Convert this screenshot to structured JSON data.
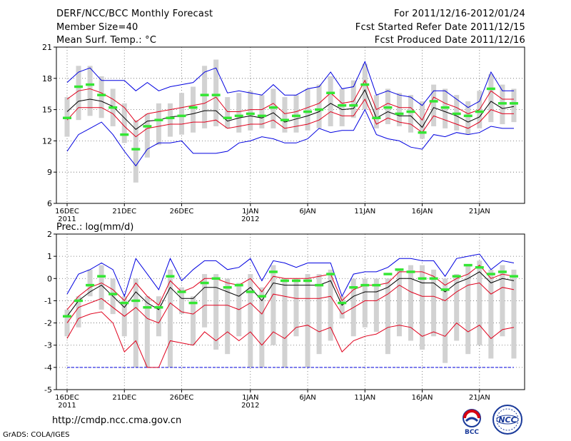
{
  "header": {
    "title": "DERF/NCC/BCC Monthly Forecast",
    "member": "Member Size=40",
    "variable": "Mean Surf. Temp.: °C",
    "period": "For 2011/12/16-2012/01/24",
    "started": "Fcst Started Refer Date 2011/12/15",
    "produced": "Fcst Produced Date 2011/12/16"
  },
  "footer": {
    "url": "http://cmdp.ncc.cma.gov.cn",
    "credit": "GrADS: COLA/IGES"
  },
  "logos": {
    "bcc_label": "BCC",
    "ncc_label": "NCC"
  },
  "colors": {
    "box": "#d2d2d2",
    "median": "#33e633",
    "mean": "#000000",
    "spread": "#e0001c",
    "envelope": "#0000e0",
    "grid": "#666666"
  },
  "chart_data": [
    {
      "type": "line",
      "title": "Mean Surf. Temp.: °C",
      "ylim": [
        6,
        21
      ],
      "yticks": [
        6,
        9,
        12,
        15,
        18,
        21
      ],
      "x": [
        "12/16",
        "12/17",
        "12/18",
        "12/19",
        "12/20",
        "12/21",
        "12/22",
        "12/23",
        "12/24",
        "12/25",
        "12/26",
        "12/27",
        "12/28",
        "12/29",
        "12/30",
        "12/31",
        "01/01",
        "01/02",
        "01/03",
        "01/04",
        "01/05",
        "01/06",
        "01/07",
        "01/08",
        "01/09",
        "01/10",
        "01/11",
        "01/12",
        "01/13",
        "01/14",
        "01/15",
        "01/16",
        "01/17",
        "01/18",
        "01/19",
        "01/20",
        "01/21",
        "01/22",
        "01/23",
        "01/24"
      ],
      "xticks": [
        {
          "label": "16DEC",
          "sub": "2011",
          "index": 0
        },
        {
          "label": "21DEC",
          "sub": "",
          "index": 5
        },
        {
          "label": "26DEC",
          "sub": "",
          "index": 10
        },
        {
          "label": "1JAN",
          "sub": "2012",
          "index": 16
        },
        {
          "label": "6JAN",
          "sub": "",
          "index": 21
        },
        {
          "label": "11JAN",
          "sub": "",
          "index": 26
        },
        {
          "label": "16JAN",
          "sub": "",
          "index": 31
        },
        {
          "label": "21JAN",
          "sub": "",
          "index": 36
        }
      ],
      "box_low": [
        12.4,
        14.0,
        14.4,
        14.2,
        13.4,
        11.8,
        8.0,
        10.4,
        11.6,
        12.4,
        12.6,
        12.8,
        13.2,
        13.4,
        13.2,
        12.8,
        13.0,
        13.2,
        13.2,
        12.8,
        12.8,
        13.0,
        13.2,
        13.4,
        13.4,
        14.2,
        15.0,
        13.2,
        13.6,
        13.4,
        12.8,
        12.2,
        13.4,
        13.2,
        13.0,
        12.6,
        13.2,
        13.8,
        13.6,
        13.8
      ],
      "box_high": [
        16.2,
        19.2,
        19.2,
        18.2,
        17.0,
        15.6,
        14.0,
        14.6,
        15.6,
        15.6,
        16.6,
        17.2,
        19.2,
        19.8,
        16.2,
        16.6,
        16.8,
        16.4,
        17.0,
        16.2,
        16.4,
        17.0,
        17.4,
        18.2,
        17.0,
        17.8,
        19.4,
        16.4,
        17.0,
        16.6,
        16.4,
        15.8,
        17.4,
        17.0,
        16.4,
        15.8,
        16.8,
        18.4,
        17.4,
        17.0
      ],
      "series": [
        {
          "name": "ensemble max",
          "role": "envelope",
          "values": [
            17.6,
            18.6,
            19.0,
            17.8,
            17.8,
            17.8,
            16.8,
            17.6,
            16.8,
            17.2,
            17.4,
            17.6,
            18.6,
            19.0,
            16.6,
            16.8,
            16.6,
            16.4,
            17.4,
            16.4,
            16.4,
            17.0,
            17.2,
            18.6,
            17.0,
            17.2,
            19.6,
            16.4,
            16.8,
            16.4,
            16.2,
            15.4,
            16.8,
            16.8,
            16.0,
            15.2,
            15.8,
            18.6,
            16.8,
            16.8
          ]
        },
        {
          "name": "ensemble min",
          "role": "envelope",
          "values": [
            11.0,
            12.6,
            13.2,
            13.8,
            12.6,
            11.0,
            9.6,
            11.2,
            11.8,
            11.8,
            12.0,
            10.8,
            10.8,
            10.8,
            11.0,
            11.8,
            12.0,
            12.4,
            12.2,
            11.8,
            11.8,
            12.2,
            13.2,
            12.8,
            13.0,
            13.0,
            15.0,
            12.6,
            12.2,
            12.0,
            11.4,
            11.2,
            12.6,
            12.4,
            12.8,
            12.6,
            12.8,
            13.4,
            13.2,
            13.2
          ]
        },
        {
          "name": "mean + std",
          "role": "spread",
          "values": [
            16.0,
            16.8,
            17.0,
            16.6,
            16.0,
            15.2,
            13.8,
            14.6,
            14.8,
            15.0,
            15.2,
            15.4,
            15.6,
            16.2,
            14.8,
            14.8,
            15.0,
            15.0,
            15.6,
            14.6,
            14.8,
            15.2,
            15.6,
            16.6,
            15.6,
            15.8,
            17.8,
            15.0,
            15.6,
            15.2,
            15.2,
            14.0,
            16.2,
            15.6,
            15.2,
            14.6,
            15.0,
            16.8,
            16.0,
            16.0
          ]
        },
        {
          "name": "mean - std",
          "role": "spread",
          "values": [
            14.0,
            15.2,
            15.2,
            15.2,
            14.6,
            13.4,
            12.4,
            13.2,
            13.4,
            13.6,
            13.6,
            13.8,
            13.8,
            14.0,
            13.2,
            13.4,
            13.6,
            13.6,
            14.0,
            13.2,
            13.4,
            13.6,
            14.0,
            14.8,
            14.4,
            14.4,
            16.0,
            13.6,
            14.2,
            13.8,
            13.6,
            12.8,
            14.4,
            14.0,
            13.6,
            13.2,
            13.8,
            15.0,
            14.6,
            14.6
          ]
        },
        {
          "name": "ensemble mean",
          "role": "mean",
          "values": [
            14.8,
            15.8,
            16.0,
            15.8,
            15.3,
            14.2,
            13.1,
            13.9,
            14.0,
            14.3,
            14.4,
            14.6,
            14.9,
            14.9,
            13.9,
            14.2,
            14.4,
            14.2,
            14.7,
            13.8,
            14.1,
            14.4,
            14.8,
            15.6,
            15.0,
            15.1,
            16.9,
            14.2,
            14.8,
            14.4,
            14.4,
            13.3,
            15.2,
            14.8,
            14.4,
            13.8,
            14.3,
            15.8,
            15.1,
            15.3
          ]
        }
      ],
      "median": [
        14.2,
        17.2,
        17.4,
        16.4,
        15.2,
        12.6,
        11.2,
        13.4,
        14.0,
        14.2,
        14.4,
        15.2,
        16.4,
        16.4,
        14.2,
        14.4,
        14.6,
        14.4,
        15.2,
        14.0,
        14.4,
        14.8,
        15.0,
        16.6,
        15.4,
        15.4,
        17.4,
        14.2,
        15.2,
        14.6,
        14.8,
        12.8,
        15.8,
        15.2,
        14.6,
        14.4,
        14.8,
        17.0,
        15.6,
        15.6
      ]
    },
    {
      "type": "line",
      "title": "Prec.: log(mm/d)",
      "ylim": [
        -5,
        2
      ],
      "yticks": [
        -5,
        -4,
        -3,
        -2,
        -1,
        0,
        1,
        2
      ],
      "x": [
        "12/16",
        "12/17",
        "12/18",
        "12/19",
        "12/20",
        "12/21",
        "12/22",
        "12/23",
        "12/24",
        "12/25",
        "12/26",
        "12/27",
        "12/28",
        "12/29",
        "12/30",
        "12/31",
        "01/01",
        "01/02",
        "01/03",
        "01/04",
        "01/05",
        "01/06",
        "01/07",
        "01/08",
        "01/09",
        "01/10",
        "01/11",
        "01/12",
        "01/13",
        "01/14",
        "01/15",
        "01/16",
        "01/17",
        "01/18",
        "01/19",
        "01/20",
        "01/21",
        "01/22",
        "01/23",
        "01/24"
      ],
      "xticks": [
        {
          "label": "16DEC",
          "sub": "2011",
          "index": 0
        },
        {
          "label": "21DEC",
          "sub": "",
          "index": 5
        },
        {
          "label": "26DEC",
          "sub": "",
          "index": 10
        },
        {
          "label": "1JAN",
          "sub": "2012",
          "index": 16
        },
        {
          "label": "6JAN",
          "sub": "",
          "index": 21
        },
        {
          "label": "11JAN",
          "sub": "",
          "index": 26
        },
        {
          "label": "16JAN",
          "sub": "",
          "index": 31
        },
        {
          "label": "21JAN",
          "sub": "",
          "index": 36
        }
      ],
      "box_low": [
        -2.6,
        -2.2,
        -0.8,
        -1.4,
        -1.6,
        -2.6,
        -4.0,
        -4.0,
        -2.6,
        -4.0,
        -1.6,
        -3.0,
        -2.2,
        -3.2,
        -3.4,
        -2.6,
        -4.0,
        -4.0,
        -3.0,
        -4.0,
        -2.6,
        -4.0,
        -3.4,
        -2.8,
        -1.8,
        -2.6,
        -2.2,
        -2.4,
        -3.4,
        -2.6,
        -2.8,
        -3.2,
        -2.6,
        -3.8,
        -2.8,
        -3.4,
        -3.0,
        -3.6,
        -2.6,
        -3.6
      ],
      "box_high": [
        -1.4,
        -0.8,
        0.4,
        0.6,
        0.0,
        -0.8,
        0.0,
        -0.8,
        -0.8,
        0.4,
        -0.4,
        -0.8,
        0.2,
        0.2,
        0.0,
        -0.2,
        0.2,
        -0.4,
        0.6,
        0.0,
        0.0,
        0.2,
        0.2,
        0.4,
        -0.8,
        0.0,
        0.0,
        0.0,
        0.0,
        0.4,
        0.6,
        0.6,
        0.4,
        0.0,
        0.2,
        0.6,
        0.8,
        0.4,
        0.6,
        0.4
      ],
      "series": [
        {
          "name": "ensemble max",
          "role": "envelope",
          "values": [
            -0.7,
            0.2,
            0.4,
            0.7,
            0.4,
            -0.8,
            0.9,
            0.2,
            -0.5,
            0.9,
            -0.1,
            0.4,
            0.8,
            0.8,
            0.4,
            0.5,
            0.9,
            -0.1,
            0.8,
            0.7,
            0.5,
            0.7,
            0.7,
            0.7,
            -0.8,
            0.2,
            0.3,
            0.3,
            0.5,
            0.9,
            0.9,
            0.8,
            0.8,
            0.1,
            0.9,
            1.0,
            1.1,
            0.4,
            0.8,
            0.7
          ]
        },
        {
          "name": "ensemble min / floor",
          "role": "envelope",
          "values": [
            -4.0,
            -4.0,
            -4.0,
            -4.0,
            -4.0,
            -4.0,
            -4.0,
            -4.0,
            -4.0,
            -4.0,
            -4.0,
            -4.0,
            -4.0,
            -4.0,
            -4.0,
            -4.0,
            -4.0,
            -4.0,
            -4.0,
            -4.0,
            -4.0,
            -4.0,
            -4.0,
            -4.0,
            -4.0,
            -4.0,
            -4.0,
            -4.0,
            -4.0,
            -4.0,
            -4.0,
            -4.0,
            -4.0,
            -4.0,
            -4.0,
            -4.0,
            -4.0,
            -4.0,
            -4.0,
            -4.0
          ]
        },
        {
          "name": "mean + std",
          "role": "spread",
          "values": [
            -1.4,
            -0.8,
            -0.4,
            -0.2,
            -0.5,
            -1.0,
            -0.2,
            -0.8,
            -1.2,
            -0.1,
            -0.6,
            -0.4,
            0.0,
            0.0,
            -0.2,
            -0.3,
            0.0,
            -0.6,
            0.1,
            0.0,
            0.0,
            0.0,
            0.1,
            0.2,
            -1.0,
            -0.5,
            -0.3,
            -0.3,
            -0.2,
            0.3,
            0.3,
            0.3,
            0.1,
            -0.3,
            0.0,
            0.2,
            0.6,
            0.0,
            0.2,
            0.1
          ]
        },
        {
          "name": "mean - std",
          "role": "spread",
          "values": [
            -2.7,
            -1.8,
            -1.6,
            -1.5,
            -2.0,
            -3.3,
            -2.8,
            -4.0,
            -4.0,
            -2.8,
            -2.9,
            -3.0,
            -2.4,
            -2.8,
            -2.4,
            -2.8,
            -2.4,
            -3.0,
            -2.4,
            -2.7,
            -2.2,
            -2.1,
            -2.4,
            -2.2,
            -3.3,
            -2.8,
            -2.6,
            -2.5,
            -2.2,
            -2.1,
            -2.2,
            -2.6,
            -2.4,
            -2.6,
            -2.0,
            -2.4,
            -2.1,
            -2.7,
            -2.3,
            -2.2
          ]
        },
        {
          "name": "mean - std (inner)",
          "role": "spread",
          "values": [
            -2.0,
            -1.3,
            -1.1,
            -0.9,
            -1.3,
            -1.7,
            -1.3,
            -1.8,
            -2.0,
            -1.1,
            -1.5,
            -1.6,
            -1.2,
            -1.2,
            -1.2,
            -1.4,
            -1.1,
            -1.6,
            -0.7,
            -0.8,
            -0.9,
            -0.9,
            -0.9,
            -0.8,
            -1.6,
            -1.3,
            -1.0,
            -1.0,
            -0.7,
            -0.3,
            -0.6,
            -0.8,
            -0.8,
            -1.0,
            -0.6,
            -0.3,
            -0.2,
            -0.7,
            -0.4,
            -0.5
          ]
        },
        {
          "name": "ensemble mean",
          "role": "mean",
          "values": [
            -1.7,
            -1.0,
            -0.6,
            -0.3,
            -0.8,
            -1.3,
            -0.6,
            -1.1,
            -1.4,
            -0.4,
            -0.9,
            -0.9,
            -0.4,
            -0.4,
            -0.6,
            -0.8,
            -0.4,
            -1.0,
            -0.2,
            -0.3,
            -0.3,
            -0.3,
            -0.3,
            -0.1,
            -1.2,
            -0.8,
            -0.6,
            -0.6,
            -0.4,
            0.0,
            0.0,
            -0.2,
            -0.2,
            -0.6,
            -0.2,
            0.0,
            0.3,
            -0.2,
            0.0,
            -0.1
          ]
        }
      ],
      "median": [
        -1.7,
        -1.0,
        -0.3,
        0.1,
        -0.7,
        -1.1,
        -1.0,
        -1.3,
        -1.3,
        0.1,
        -0.6,
        -1.1,
        -0.2,
        0.0,
        -0.4,
        -0.3,
        -0.6,
        -0.8,
        0.3,
        -0.1,
        -0.1,
        -0.1,
        -0.3,
        0.2,
        -1.1,
        -0.4,
        -0.3,
        -0.3,
        0.2,
        0.4,
        0.3,
        0.0,
        0.0,
        -0.5,
        0.1,
        0.6,
        0.5,
        0.2,
        0.3,
        0.1
      ]
    }
  ]
}
